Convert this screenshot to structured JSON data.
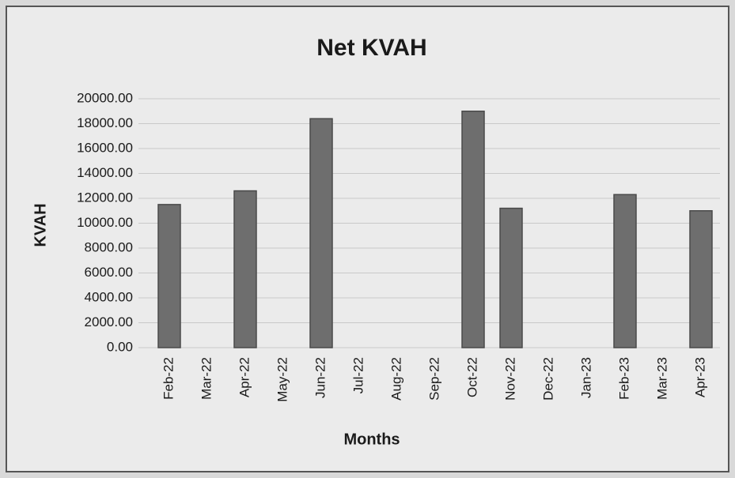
{
  "chart_data": {
    "type": "bar",
    "title": "Net KVAH",
    "x_label": "Months",
    "y_label": "KVAH",
    "categories": [
      "Feb-22",
      "Mar-22",
      "Apr-22",
      "May-22",
      "Jun-22",
      "Jul-22",
      "Aug-22",
      "Sep-22",
      "Oct-22",
      "Nov-22",
      "Dec-22",
      "Jan-23",
      "Feb-23",
      "Mar-23",
      "Apr-23"
    ],
    "values": [
      11500,
      0,
      12600,
      0,
      18400,
      0,
      0,
      0,
      19000,
      11200,
      0,
      0,
      12300,
      0,
      11000
    ],
    "color": "#6e6e6e",
    "ylim": [
      0,
      20000
    ],
    "yticks": [
      {
        "value": 0,
        "label": "0.00"
      },
      {
        "value": 2000,
        "label": "2000.00"
      },
      {
        "value": 4000,
        "label": "4000.00"
      },
      {
        "value": 6000,
        "label": "6000.00"
      },
      {
        "value": 8000,
        "label": "8000.00"
      },
      {
        "value": 10000,
        "label": "10000.00"
      },
      {
        "value": 12000,
        "label": "12000.00"
      },
      {
        "value": 14000,
        "label": "14000.00"
      },
      {
        "value": 16000,
        "label": "16000.00"
      },
      {
        "value": 18000,
        "label": "18000.00"
      },
      {
        "value": 20000,
        "label": "20000.00"
      }
    ],
    "grid": true
  }
}
